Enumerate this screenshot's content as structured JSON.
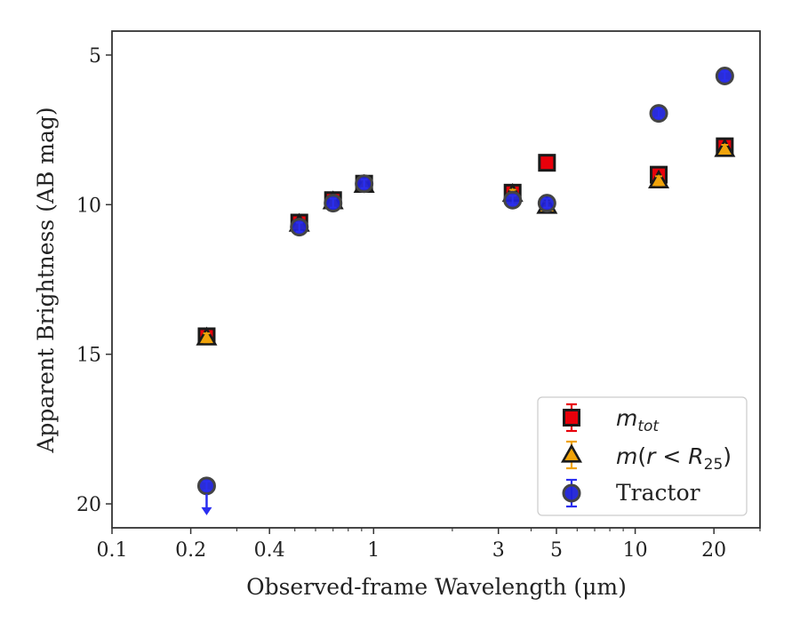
{
  "chart_data": {
    "type": "scatter",
    "xlabel": "Observed-frame Wavelength (μm)",
    "ylabel": "Apparent Brightness (AB mag)",
    "xscale": "log",
    "xlim": [
      0.1,
      30
    ],
    "ylim": [
      20.8,
      4.2
    ],
    "y_inverted": true,
    "xticks": [
      {
        "value": 0.1,
        "label": "0.1"
      },
      {
        "value": 0.2,
        "label": "0.2"
      },
      {
        "value": 0.4,
        "label": "0.4"
      },
      {
        "value": 1,
        "label": "1"
      },
      {
        "value": 3,
        "label": "3"
      },
      {
        "value": 5,
        "label": "5"
      },
      {
        "value": 10,
        "label": "10"
      },
      {
        "value": 20,
        "label": "20"
      }
    ],
    "yticks": [
      {
        "value": 5,
        "label": "5"
      },
      {
        "value": 10,
        "label": "10"
      },
      {
        "value": 15,
        "label": "15"
      },
      {
        "value": 20,
        "label": "20"
      }
    ],
    "legend_position": "lower-right",
    "series": [
      {
        "name": "m_tot",
        "marker": "square",
        "face_color": "#e8000b",
        "edge_color": "#1a1a1a",
        "errbar_color": "#e8000b",
        "points": [
          {
            "x": 0.23,
            "y": 14.4
          },
          {
            "x": 0.52,
            "y": 10.6
          },
          {
            "x": 0.7,
            "y": 9.85
          },
          {
            "x": 0.92,
            "y": 9.3
          },
          {
            "x": 3.4,
            "y": 9.6
          },
          {
            "x": 4.6,
            "y": 8.6
          },
          {
            "x": 12.3,
            "y": 9.0
          },
          {
            "x": 22.0,
            "y": 8.05
          }
        ]
      },
      {
        "name": "m(r < R_25)",
        "marker": "triangle",
        "face_color": "#f0a30a",
        "edge_color": "#1a1a1a",
        "errbar_color": "#f0a30a",
        "points": [
          {
            "x": 0.23,
            "y": 14.45
          },
          {
            "x": 0.52,
            "y": 10.65
          },
          {
            "x": 0.7,
            "y": 9.9
          },
          {
            "x": 0.92,
            "y": 9.35
          },
          {
            "x": 3.4,
            "y": 9.65
          },
          {
            "x": 4.6,
            "y": 10.05
          },
          {
            "x": 12.3,
            "y": 9.2
          },
          {
            "x": 22.0,
            "y": 8.15
          }
        ]
      },
      {
        "name": "Tractor",
        "marker": "circle",
        "face_color": "#1f22d6",
        "edge_color": "#444444",
        "errbar_color": "#2a2ef0",
        "points": [
          {
            "x": 0.23,
            "y": 19.4,
            "upper_limit": true
          },
          {
            "x": 0.52,
            "y": 10.75
          },
          {
            "x": 0.7,
            "y": 9.95
          },
          {
            "x": 0.92,
            "y": 9.3
          },
          {
            "x": 3.4,
            "y": 9.85
          },
          {
            "x": 4.6,
            "y": 9.95
          },
          {
            "x": 12.3,
            "y": 6.95
          },
          {
            "x": 22.0,
            "y": 5.7
          }
        ]
      }
    ]
  },
  "legend": {
    "mtot_main": "m",
    "mtot_sub": "tot",
    "mr_pre": "m",
    "mr_paren_open": "(",
    "mr_r": "r",
    "mr_lt": " < ",
    "mr_R": "R",
    "mr_sub": "25",
    "mr_paren_close": ")",
    "tractor": "Tractor"
  }
}
